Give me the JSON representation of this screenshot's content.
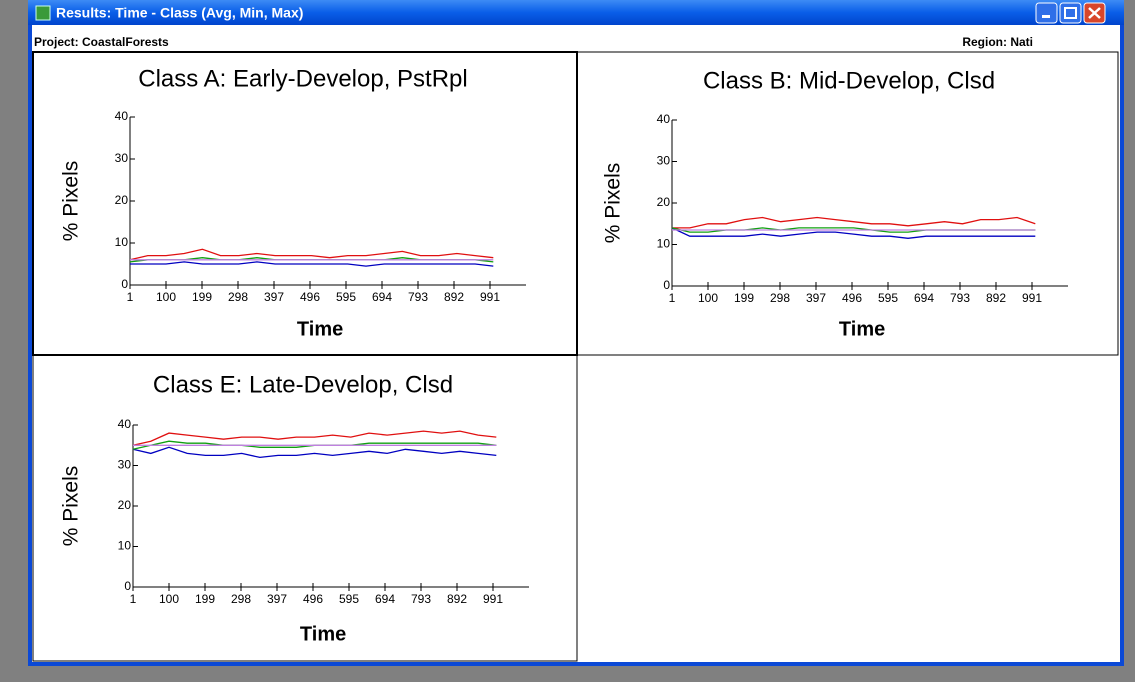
{
  "window": {
    "title": "Results: Time - Class (Avg, Min, Max)",
    "project": "Project: CoastalForests",
    "region": "Region: Nati"
  },
  "chart_data": [
    {
      "type": "line",
      "title": "Class A: Early-Develop, PstRpl",
      "ylabel": "% Pixels",
      "xlabel": "Time",
      "x": [
        1,
        50,
        100,
        150,
        200,
        250,
        300,
        350,
        400,
        450,
        500,
        550,
        600,
        650,
        700,
        750,
        800,
        850,
        900,
        950,
        1000
      ],
      "xlim": [
        1,
        1090
      ],
      "xticks": [
        1,
        100,
        199,
        298,
        397,
        496,
        595,
        694,
        793,
        892,
        991
      ],
      "ylim": [
        0,
        40
      ],
      "yticks": [
        0,
        10,
        20,
        30,
        40
      ],
      "series": [
        {
          "color": "#e01010",
          "values": [
            6,
            7,
            7,
            7.5,
            8.5,
            7,
            7,
            7.5,
            7,
            7,
            7,
            6.5,
            7,
            7,
            7.5,
            8,
            7,
            7,
            7.5,
            7,
            6.5
          ]
        },
        {
          "color": "#0000c0",
          "values": [
            5,
            5,
            5,
            5.5,
            5,
            5,
            5,
            5.5,
            5,
            5,
            5,
            5,
            5,
            4.5,
            5,
            5,
            5,
            5,
            5,
            5,
            4.5
          ]
        },
        {
          "color": "#10a010",
          "values": [
            5.5,
            6,
            6,
            6,
            6.5,
            6,
            6,
            6.5,
            6,
            6,
            6,
            6,
            6,
            6,
            6,
            6.5,
            6,
            6,
            6,
            6,
            5.5
          ]
        },
        {
          "color": "#c080e0",
          "values": [
            6,
            6,
            6,
            6,
            6,
            6,
            6,
            6,
            6,
            6,
            6,
            6,
            6,
            6,
            6,
            6,
            6,
            6,
            6,
            6,
            6
          ]
        }
      ]
    },
    {
      "type": "line",
      "title": "Class B: Mid-Develop, Clsd",
      "ylabel": "% Pixels",
      "xlabel": "Time",
      "x": [
        1,
        50,
        100,
        150,
        200,
        250,
        300,
        350,
        400,
        450,
        500,
        550,
        600,
        650,
        700,
        750,
        800,
        850,
        900,
        950,
        1000
      ],
      "xlim": [
        1,
        1090
      ],
      "xticks": [
        1,
        100,
        199,
        298,
        397,
        496,
        595,
        694,
        793,
        892,
        991
      ],
      "ylim": [
        0,
        40
      ],
      "yticks": [
        0,
        10,
        20,
        30,
        40
      ],
      "series": [
        {
          "color": "#e01010",
          "values": [
            14,
            14,
            15,
            15,
            16,
            16.5,
            15.5,
            16,
            16.5,
            16,
            15.5,
            15,
            15,
            14.5,
            15,
            15.5,
            15,
            16,
            16,
            16.5,
            15
          ]
        },
        {
          "color": "#0000c0",
          "values": [
            14,
            12,
            12,
            12,
            12,
            12.5,
            12,
            12.5,
            13,
            13,
            12.5,
            12,
            12,
            11.5,
            12,
            12,
            12,
            12,
            12,
            12,
            12
          ]
        },
        {
          "color": "#10a010",
          "values": [
            14,
            13,
            13,
            13.5,
            13.5,
            14,
            13.5,
            14,
            14,
            14,
            14,
            13.5,
            13,
            13,
            13.5,
            13.5,
            13.5,
            13.5,
            13.5,
            13.5,
            13.5
          ]
        },
        {
          "color": "#c080e0",
          "values": [
            13.5,
            13.5,
            13.5,
            13.5,
            13.5,
            13.5,
            13.5,
            13.5,
            13.5,
            13.5,
            13.5,
            13.5,
            13.5,
            13.5,
            13.5,
            13.5,
            13.5,
            13.5,
            13.5,
            13.5,
            13.5
          ]
        }
      ]
    },
    {
      "type": "line",
      "title": "Class E: Late-Develop, Clsd",
      "ylabel": "% Pixels",
      "xlabel": "Time",
      "x": [
        1,
        50,
        100,
        150,
        200,
        250,
        300,
        350,
        400,
        450,
        500,
        550,
        600,
        650,
        700,
        750,
        800,
        850,
        900,
        950,
        1000
      ],
      "xlim": [
        1,
        1090
      ],
      "xticks": [
        1,
        100,
        199,
        298,
        397,
        496,
        595,
        694,
        793,
        892,
        991
      ],
      "ylim": [
        0,
        40
      ],
      "yticks": [
        0,
        10,
        20,
        30,
        40
      ],
      "series": [
        {
          "color": "#e01010",
          "values": [
            35,
            36,
            38,
            37.5,
            37,
            36.5,
            37,
            37,
            36.5,
            37,
            37,
            37.5,
            37,
            38,
            37.5,
            38,
            38.5,
            38,
            38.5,
            37.5,
            37
          ]
        },
        {
          "color": "#0000c0",
          "values": [
            34,
            33,
            34.5,
            33,
            32.5,
            32.5,
            33,
            32,
            32.5,
            32.5,
            33,
            32.5,
            33,
            33.5,
            33,
            34,
            33.5,
            33,
            33.5,
            33,
            32.5
          ]
        },
        {
          "color": "#10a010",
          "values": [
            34,
            35,
            36,
            35.5,
            35.5,
            35,
            35,
            34.5,
            34.5,
            34.5,
            35,
            35,
            35,
            35.5,
            35.5,
            35.5,
            35.5,
            35.5,
            35.5,
            35.5,
            35
          ]
        },
        {
          "color": "#c080e0",
          "values": [
            35,
            35,
            35,
            35,
            35,
            35,
            35,
            35,
            35,
            35,
            35,
            35,
            35,
            35,
            35,
            35,
            35,
            35,
            35,
            35,
            35
          ]
        }
      ]
    }
  ]
}
